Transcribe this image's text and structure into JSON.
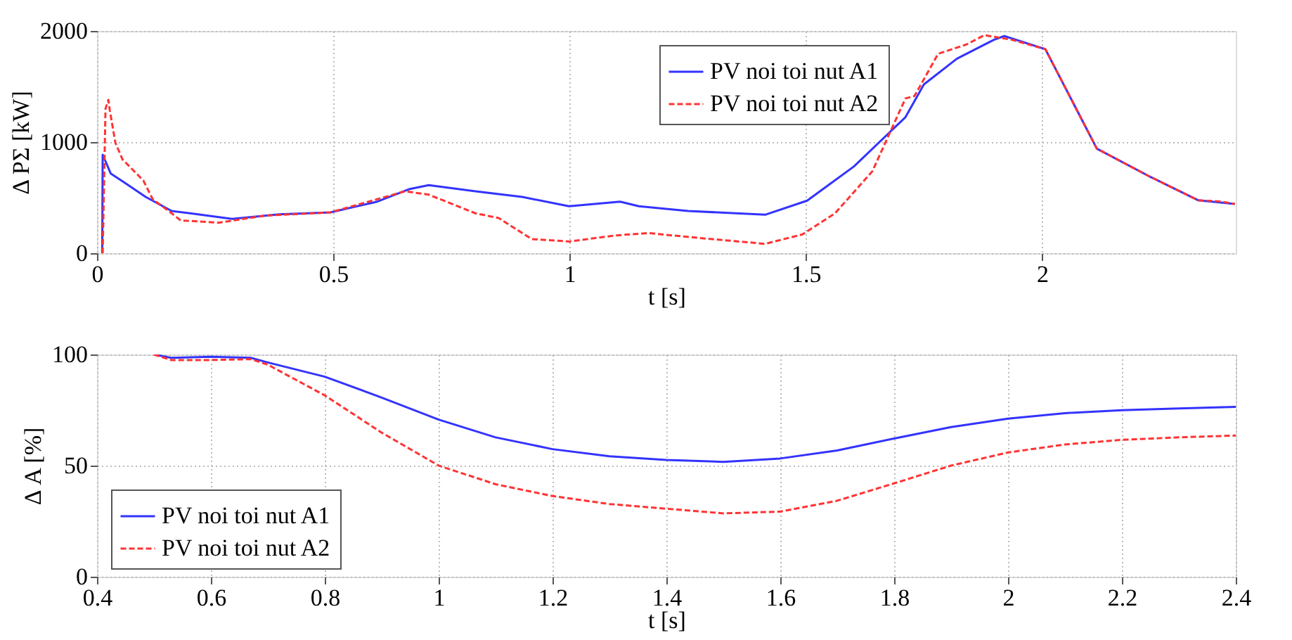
{
  "chart_data": [
    {
      "type": "line",
      "xlabel": "t [s]",
      "ylabel": "Δ PΣ [kW]",
      "xlim": [
        0,
        2.41
      ],
      "xticks": [
        0,
        0.5,
        1,
        1.5,
        2
      ],
      "ylim": [
        0,
        2000
      ],
      "yticks": [
        0,
        1000,
        2000
      ],
      "grid": true,
      "legend": "top",
      "marker": "none",
      "series": [
        {
          "name": "PV noi toi nut A1",
          "color": "#3333ff",
          "line_style": "solid",
          "x": [
            0.011,
            0.012,
            0.029,
            0.059,
            0.103,
            0.158,
            0.197,
            0.286,
            0.385,
            0.494,
            0.593,
            0.662,
            0.702,
            0.801,
            0.9,
            0.999,
            1.107,
            1.147,
            1.251,
            1.414,
            1.503,
            1.602,
            1.711,
            1.75,
            1.82,
            1.898,
            1.92,
            2.007,
            2.116,
            2.225,
            2.33,
            2.408
          ],
          "values": [
            0,
            886,
            717,
            633,
            506,
            380,
            359,
            308,
            350,
            367,
            464,
            578,
            612,
            557,
            506,
            422,
            464,
            422,
            380,
            346,
            473,
            781,
            1224,
            1519,
            1751,
            1920,
            1954,
            1836,
            941,
            696,
            477,
            443
          ]
        },
        {
          "name": "PV noi toi nut A2",
          "color": "#ff3333",
          "line_style": "dashed",
          "x": [
            0.012,
            0.018,
            0.024,
            0.027,
            0.039,
            0.054,
            0.098,
            0.118,
            0.158,
            0.177,
            0.257,
            0.355,
            0.494,
            0.652,
            0.702,
            0.801,
            0.85,
            0.92,
            0.999,
            1.098,
            1.167,
            1.246,
            1.414,
            1.493,
            1.562,
            1.641,
            1.711,
            1.73,
            1.78,
            1.84,
            1.878,
            1.937,
            2.007,
            2.116,
            2.225,
            2.33,
            2.38,
            2.408
          ],
          "values": [
            0,
            1300,
            1380,
            1287,
            992,
            844,
            654,
            485,
            359,
            295,
            274,
            338,
            367,
            557,
            527,
            359,
            316,
            127,
            105,
            160,
            181,
            148,
            84,
            169,
            359,
            738,
            1393,
            1414,
            1794,
            1878,
            1962,
            1920,
            1836,
            941,
            696,
            477,
            464,
            443
          ]
        }
      ]
    },
    {
      "type": "line",
      "xlabel": "t [s]",
      "ylabel": "Δ A [%]",
      "xlim": [
        0.4,
        2.4
      ],
      "xticks": [
        0.4,
        0.6,
        0.8,
        1,
        1.2,
        1.4,
        1.6,
        1.8,
        2,
        2.2,
        2.4
      ],
      "ylim": [
        0,
        100
      ],
      "yticks": [
        0,
        50,
        100
      ],
      "grid": true,
      "legend": "bottom left",
      "marker": "none",
      "series": [
        {
          "name": "PV noi toi nut A1",
          "color": "#3333ff",
          "line_style": "solid",
          "x": [
            0.5,
            0.53,
            0.6,
            0.67,
            0.7,
            0.8,
            0.9,
            1.0,
            1.1,
            1.2,
            1.3,
            1.4,
            1.5,
            1.6,
            1.7,
            1.8,
            1.9,
            2.0,
            2.1,
            2.2,
            2.3,
            2.4
          ],
          "values": [
            100,
            98.5,
            99,
            98.5,
            96.4,
            90,
            80.6,
            70.7,
            62.7,
            57.4,
            54.2,
            52.5,
            51.7,
            53.2,
            56.8,
            62.2,
            67.3,
            71.1,
            73.6,
            74.9,
            75.7,
            76.4
          ]
        },
        {
          "name": "PV noi toi nut A2",
          "color": "#ff3333",
          "line_style": "dashed",
          "x": [
            0.5,
            0.53,
            0.6,
            0.67,
            0.7,
            0.8,
            0.9,
            1.0,
            1.1,
            1.2,
            1.3,
            1.4,
            1.5,
            1.6,
            1.7,
            1.8,
            1.9,
            2.0,
            2.1,
            2.2,
            2.3,
            2.4
          ],
          "values": [
            100,
            97.5,
            97.5,
            97.9,
            95.4,
            81.6,
            64.8,
            50,
            41.6,
            36.3,
            32.7,
            30.6,
            28.5,
            29.3,
            34.2,
            42,
            50,
            55.9,
            59.5,
            61.6,
            62.7,
            63.5
          ]
        }
      ]
    }
  ]
}
